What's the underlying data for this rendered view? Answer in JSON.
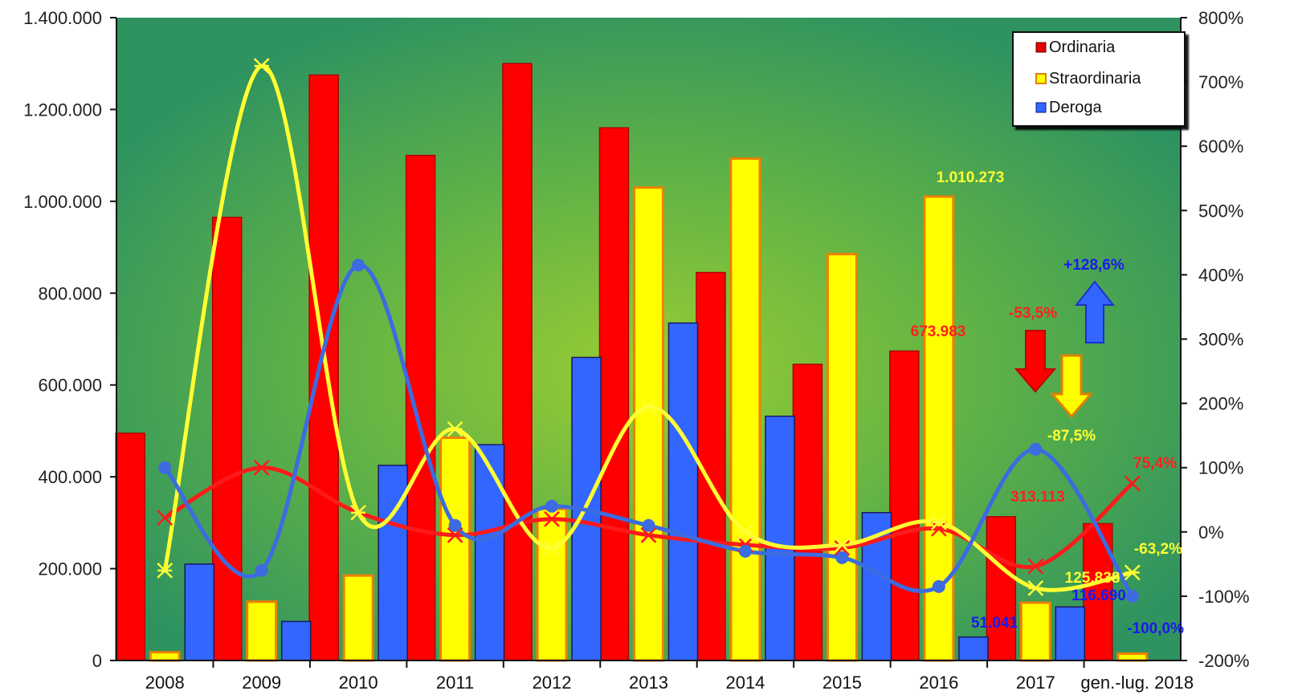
{
  "chart_data": {
    "type": "bar",
    "categories": [
      "2008",
      "2009",
      "2010",
      "2011",
      "2012",
      "2013",
      "2014",
      "2015",
      "2016",
      "2017",
      "gen.-lug. 2018"
    ],
    "series": [
      {
        "name": "Ordinaria",
        "values": [
          495000,
          965000,
          1275000,
          1100000,
          1300000,
          1160000,
          845000,
          645000,
          673983,
          313113,
          298000
        ]
      },
      {
        "name": "Straordinaria",
        "values": [
          18000,
          128000,
          185000,
          485000,
          330000,
          1030000,
          1093000,
          885000,
          1010273,
          125838,
          15000
        ]
      },
      {
        "name": "Deroga",
        "values": [
          210000,
          85000,
          425000,
          470000,
          660000,
          735000,
          532000,
          322000,
          51041,
          116690,
          0
        ]
      }
    ],
    "line_series": [
      {
        "series_ref": "Ordinaria",
        "values": [
          22,
          100,
          30,
          -5,
          20,
          -5,
          -20,
          -25,
          5,
          -53.5,
          75.4
        ]
      },
      {
        "series_ref": "Straordinaria",
        "values": [
          -60,
          725,
          30,
          160,
          -25,
          195,
          0,
          -20,
          15,
          -87.5,
          -63.2
        ]
      },
      {
        "series_ref": "Deroga",
        "values": [
          100,
          -60,
          415,
          10,
          40,
          10,
          -30,
          -40,
          -85,
          128.6,
          -100
        ]
      }
    ],
    "ylim": [
      0,
      1400000
    ],
    "y2lim": [
      -200,
      800
    ],
    "y_ticks": [
      "0",
      "200.000",
      "400.000",
      "600.000",
      "800.000",
      "1.000.000",
      "1.200.000",
      "1.400.000"
    ],
    "y2_ticks": [
      "-200%",
      "-100%",
      "0%",
      "100%",
      "200%",
      "300%",
      "400%",
      "500%",
      "600%",
      "700%",
      "800%"
    ],
    "legend_position": "top-right",
    "colors": {
      "ordinaria": "#ff0000",
      "straordinaria": "#ffff00",
      "deroga": "#3366ff",
      "line_ordinaria": "#ff1a1a",
      "line_straordinaria": "#ffff33",
      "line_deroga": "#3d6be0",
      "annotation_red": "#ff2020",
      "annotation_yellow": "#ffff33",
      "annotation_blue": "#1a1aee",
      "bg_center": "#8cc63f",
      "bg_edge": "#2e9560"
    },
    "annotations": {
      "ord_2016": "673.983",
      "stra_2016": "1.010.273",
      "der_2016": "51.041",
      "ord_2017": "313.113",
      "stra_2017": "125.838",
      "der_2017": "116.690",
      "pct_ord_2017": "-53,5%",
      "pct_stra_2017": "-87,5%",
      "pct_der_2017": "+128,6%",
      "pct_ord_2018": "75,4%",
      "pct_stra_2018": "-63,2%",
      "pct_der_2018": "-100,0%"
    }
  }
}
